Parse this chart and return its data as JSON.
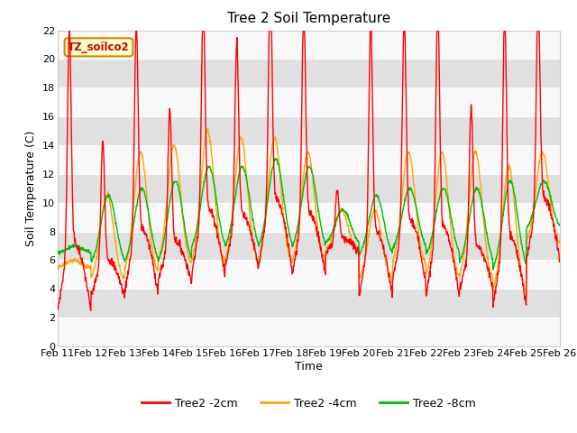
{
  "title": "Tree 2 Soil Temperature",
  "xlabel": "Time",
  "ylabel": "Soil Temperature (C)",
  "ylim": [
    0,
    22
  ],
  "yticks": [
    0,
    2,
    4,
    6,
    8,
    10,
    12,
    14,
    16,
    18,
    20,
    22
  ],
  "xtick_labels": [
    "Feb 11",
    "Feb 12",
    "Feb 13",
    "Feb 14",
    "Feb 15",
    "Feb 16",
    "Feb 17",
    "Feb 18",
    "Feb 19",
    "Feb 20",
    "Feb 21",
    "Feb 22",
    "Feb 23",
    "Feb 24",
    "Feb 25",
    "Feb 26"
  ],
  "legend_label": "TZ_soilco2",
  "series_labels": [
    "Tree2 -2cm",
    "Tree2 -4cm",
    "Tree2 -8cm"
  ],
  "series_colors": [
    "#ff0000",
    "#ffa500",
    "#00bb00"
  ],
  "background_color": "#ffffff",
  "plot_bg_color": "#f0f0f0",
  "stripe_light": "#f8f8f8",
  "stripe_dark": "#e0e0e0",
  "title_fontsize": 11,
  "axis_fontsize": 9,
  "tick_fontsize": 8,
  "legend_box_color": "#ffffcc",
  "legend_box_edge": "#cc8800",
  "legend_text_color": "#cc0000"
}
